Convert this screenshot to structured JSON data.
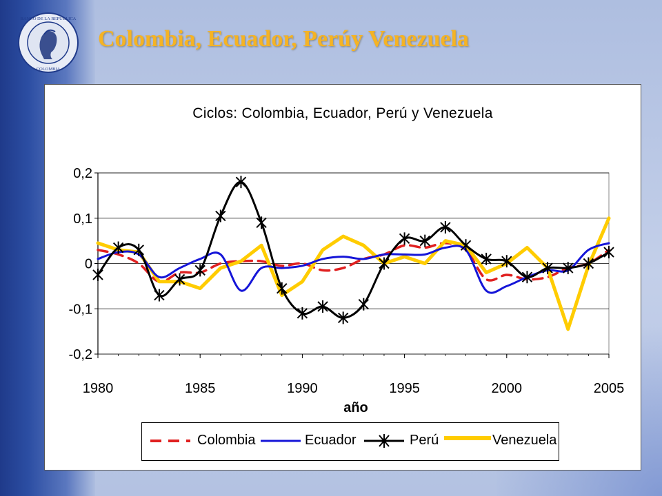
{
  "slide": {
    "title": "Colombia, Ecuador, Perúy Venezuela",
    "seal_text_top": "BANCO DE LA REPUBLICA",
    "seal_text_bottom": "COLOMBIA"
  },
  "colors": {
    "title": "#f5b324",
    "colombia": "#e02020",
    "ecuador": "#1515d8",
    "peru": "#000000",
    "venezuela": "#ffcc00"
  },
  "chart_data": {
    "type": "line",
    "title": "Ciclos: Colombia, Ecuador,  Perú y Venezuela",
    "xlabel": "año",
    "ylabel": "",
    "xlim": [
      1980,
      2005
    ],
    "ylim": [
      -0.2,
      0.2
    ],
    "x_ticks": [
      1980,
      1985,
      1990,
      1995,
      2000,
      2005
    ],
    "y_ticks": [
      {
        "value": -0.2,
        "label": "-0,2"
      },
      {
        "value": -0.1,
        "label": "-0,1"
      },
      {
        "value": 0,
        "label": "0"
      },
      {
        "value": 0.1,
        "label": "0,1"
      },
      {
        "value": 0.2,
        "label": "0,2"
      }
    ],
    "grid": "horizontal",
    "legend_position": "bottom",
    "x": [
      1980,
      1981,
      1982,
      1983,
      1984,
      1985,
      1986,
      1987,
      1988,
      1989,
      1990,
      1991,
      1992,
      1993,
      1994,
      1995,
      1996,
      1997,
      1998,
      1999,
      2000,
      2001,
      2002,
      2003,
      2004,
      2005
    ],
    "series": [
      {
        "name": "Colombia",
        "style": "dashed",
        "values": [
          0.03,
          0.02,
          0.0,
          -0.04,
          -0.02,
          -0.02,
          0.0,
          0.005,
          0.005,
          -0.005,
          0.0,
          -0.015,
          -0.01,
          0.01,
          0.02,
          0.04,
          0.035,
          0.045,
          0.03,
          -0.035,
          -0.025,
          -0.035,
          -0.03,
          -0.01,
          0.0,
          0.03
        ]
      },
      {
        "name": "Ecuador",
        "style": "solid",
        "values": [
          0.01,
          0.025,
          0.02,
          -0.03,
          -0.01,
          0.01,
          0.02,
          -0.06,
          -0.01,
          -0.01,
          -0.005,
          0.01,
          0.015,
          0.01,
          0.02,
          0.02,
          0.02,
          0.035,
          0.03,
          -0.06,
          -0.05,
          -0.03,
          -0.015,
          -0.015,
          0.03,
          0.045
        ]
      },
      {
        "name": "Perú",
        "style": "markers",
        "values": [
          -0.025,
          0.035,
          0.03,
          -0.07,
          -0.035,
          -0.015,
          0.105,
          0.18,
          0.09,
          -0.055,
          -0.11,
          -0.095,
          -0.12,
          -0.09,
          0.0,
          0.055,
          0.05,
          0.08,
          0.04,
          0.01,
          0.005,
          -0.03,
          -0.01,
          -0.01,
          0.0,
          0.025
        ]
      },
      {
        "name": "Venezuela",
        "style": "thick",
        "values": [
          0.045,
          0.03,
          0.025,
          -0.04,
          -0.04,
          -0.055,
          -0.01,
          0.005,
          0.04,
          -0.07,
          -0.04,
          0.03,
          0.06,
          0.04,
          0.0,
          0.015,
          0.0,
          0.05,
          0.04,
          -0.02,
          0.0,
          0.035,
          -0.01,
          -0.145,
          -0.005,
          0.1
        ]
      }
    ]
  }
}
